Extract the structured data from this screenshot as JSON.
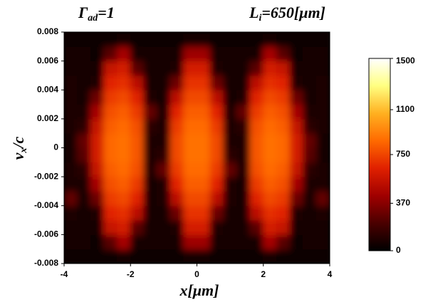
{
  "chart_data": {
    "type": "heatmap",
    "title_left": {
      "base": "Γ",
      "sub": "ad",
      "rest": "=1"
    },
    "title_right": {
      "base": "L",
      "sub": "i",
      "rest": "=650[μm]"
    },
    "xlabel": "x[μm]",
    "ylabel": {
      "base": "v",
      "sub": "x",
      "rest": "/c"
    },
    "xlim": [
      -4,
      4
    ],
    "xticks": [
      -4,
      -2,
      0,
      2,
      4
    ],
    "ylim": [
      -0.008,
      0.008
    ],
    "yticks": [
      -0.008,
      -0.006,
      -0.004,
      -0.002,
      0,
      0.002,
      0.004,
      0.006,
      0.008
    ],
    "x_bins": [
      -4,
      -3.6,
      -3.2,
      -2.8,
      -2.4,
      -2,
      -1.6,
      -1.2,
      -0.8,
      -0.4,
      0,
      0.4,
      0.8,
      1.2,
      1.6,
      2,
      2.4,
      2.8,
      3.2,
      3.6,
      4
    ],
    "y_bins": [
      -0.008,
      -0.007,
      -0.006,
      -0.005,
      -0.004,
      -0.003,
      -0.002,
      -0.001,
      0,
      0.001,
      0.002,
      0.003,
      0.004,
      0.005,
      0.006,
      0.007,
      0.008
    ],
    "z": [
      [
        50,
        50,
        40,
        50,
        60,
        50,
        50,
        50,
        40,
        60,
        60,
        40,
        50,
        50,
        50,
        60,
        50,
        40,
        50,
        50
      ],
      [
        60,
        60,
        50,
        250,
        450,
        70,
        60,
        60,
        60,
        420,
        420,
        60,
        60,
        60,
        70,
        450,
        250,
        50,
        60,
        60
      ],
      [
        70,
        70,
        60,
        550,
        600,
        250,
        70,
        70,
        80,
        600,
        600,
        80,
        70,
        70,
        250,
        600,
        550,
        60,
        70,
        70
      ],
      [
        80,
        70,
        80,
        650,
        680,
        520,
        70,
        70,
        300,
        690,
        690,
        300,
        70,
        70,
        520,
        680,
        650,
        80,
        70,
        90
      ],
      [
        280,
        70,
        300,
        720,
        760,
        640,
        70,
        80,
        520,
        760,
        760,
        520,
        80,
        70,
        640,
        760,
        720,
        300,
        70,
        280
      ],
      [
        90,
        80,
        450,
        780,
        820,
        720,
        70,
        90,
        650,
        820,
        820,
        650,
        90,
        70,
        720,
        820,
        780,
        450,
        80,
        90
      ],
      [
        80,
        120,
        550,
        820,
        860,
        780,
        80,
        280,
        720,
        860,
        860,
        720,
        280,
        80,
        780,
        860,
        820,
        550,
        120,
        80
      ],
      [
        70,
        250,
        600,
        850,
        880,
        800,
        90,
        120,
        760,
        880,
        880,
        760,
        120,
        90,
        800,
        880,
        850,
        600,
        250,
        70
      ],
      [
        70,
        280,
        600,
        850,
        880,
        800,
        90,
        90,
        760,
        880,
        880,
        760,
        90,
        90,
        800,
        880,
        850,
        600,
        280,
        70
      ],
      [
        80,
        120,
        550,
        820,
        860,
        780,
        120,
        80,
        720,
        860,
        860,
        720,
        80,
        120,
        780,
        860,
        820,
        550,
        120,
        80
      ],
      [
        90,
        80,
        450,
        780,
        820,
        720,
        280,
        70,
        650,
        820,
        820,
        650,
        70,
        280,
        720,
        820,
        780,
        450,
        80,
        90
      ],
      [
        90,
        70,
        300,
        720,
        760,
        640,
        90,
        70,
        520,
        760,
        760,
        520,
        70,
        90,
        640,
        760,
        720,
        300,
        70,
        90
      ],
      [
        80,
        70,
        80,
        650,
        680,
        520,
        70,
        70,
        300,
        690,
        690,
        300,
        70,
        70,
        520,
        680,
        650,
        80,
        70,
        80
      ],
      [
        70,
        70,
        60,
        550,
        600,
        250,
        70,
        70,
        80,
        600,
        600,
        80,
        70,
        70,
        250,
        600,
        550,
        60,
        70,
        70
      ],
      [
        60,
        60,
        50,
        250,
        450,
        70,
        60,
        60,
        60,
        420,
        420,
        60,
        60,
        60,
        70,
        450,
        250,
        50,
        60,
        60
      ],
      [
        50,
        50,
        40,
        50,
        60,
        50,
        50,
        50,
        40,
        60,
        60,
        40,
        50,
        50,
        50,
        60,
        50,
        40,
        50,
        50
      ]
    ],
    "zlim": [
      0,
      1500
    ],
    "zticks": [
      0,
      370,
      750,
      1100,
      1500
    ],
    "colormap": [
      "#000000",
      "#4a0000",
      "#a00000",
      "#e02000",
      "#ff6a00",
      "#ffb020",
      "#ffff80",
      "#ffffff"
    ]
  }
}
